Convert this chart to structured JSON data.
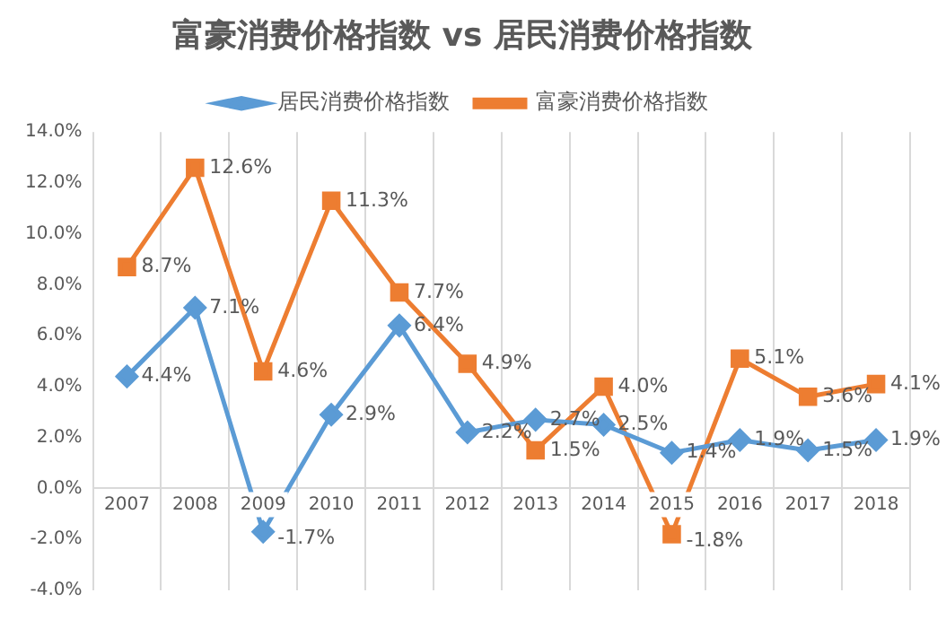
{
  "chart_data": {
    "type": "line",
    "title": "富豪消费价格指数 vs 居民消费价格指数",
    "categories": [
      "2007",
      "2008",
      "2009",
      "2010",
      "2011",
      "2012",
      "2013",
      "2014",
      "2015",
      "2016",
      "2017",
      "2018"
    ],
    "series": [
      {
        "name": "居民消费价格指数",
        "color": "#5b9bd5",
        "marker": "diamond",
        "values": [
          4.4,
          7.1,
          -1.7,
          2.9,
          6.4,
          2.2,
          2.7,
          2.5,
          1.4,
          1.9,
          1.5,
          1.9
        ],
        "value_labels": [
          "4.4%",
          "7.1%",
          "-1.7%",
          "2.9%",
          "6.4%",
          "2.2%",
          "2.7%",
          "2.5%",
          "1.4%",
          "1.9%",
          "1.5%",
          "1.9%"
        ]
      },
      {
        "name": "富豪消费价格指数",
        "color": "#ed7d31",
        "marker": "square",
        "values": [
          8.7,
          12.6,
          4.6,
          11.3,
          7.7,
          4.9,
          1.5,
          4.0,
          -1.8,
          5.1,
          3.6,
          4.1
        ],
        "value_labels": [
          "8.7%",
          "12.6%",
          "4.6%",
          "11.3%",
          "7.7%",
          "4.9%",
          "1.5%",
          "4.0%",
          "-1.8%",
          "5.1%",
          "3.6%",
          "4.1%"
        ]
      }
    ],
    "ylim": [
      -4,
      14
    ],
    "yticks": [
      {
        "value": -4,
        "label": "-4.0%"
      },
      {
        "value": -2,
        "label": "-2.0%"
      },
      {
        "value": 0,
        "label": "0.0%"
      },
      {
        "value": 2,
        "label": "2.0%"
      },
      {
        "value": 4,
        "label": "4.0%"
      },
      {
        "value": 6,
        "label": "6.0%"
      },
      {
        "value": 8,
        "label": "8.0%"
      },
      {
        "value": 10,
        "label": "10.0%"
      },
      {
        "value": 12,
        "label": "12.0%"
      },
      {
        "value": 14,
        "label": "14.0%"
      }
    ],
    "grid": "x",
    "legend": "top",
    "line_style": "solid"
  }
}
